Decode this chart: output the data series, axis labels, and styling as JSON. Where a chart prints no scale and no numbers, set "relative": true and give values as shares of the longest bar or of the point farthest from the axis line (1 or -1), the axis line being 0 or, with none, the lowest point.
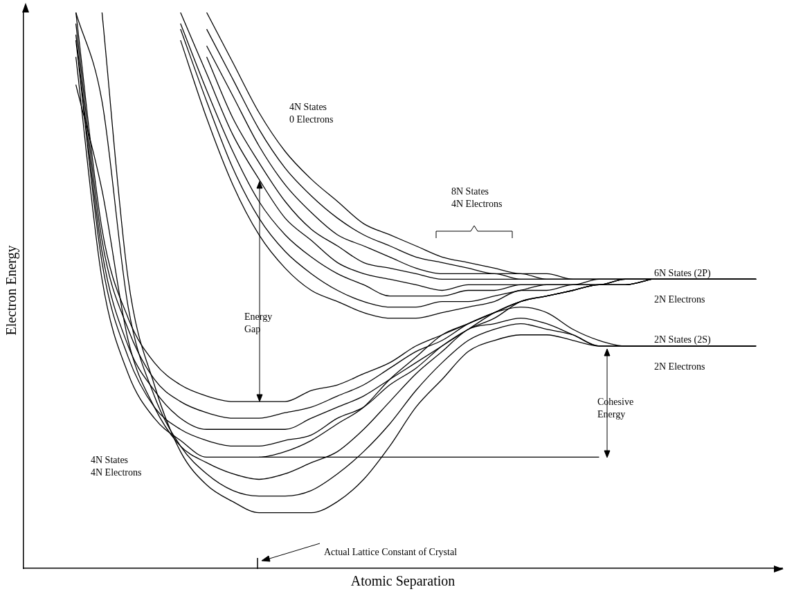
{
  "chart_data": {
    "type": "line",
    "relative": true,
    "marker": "none",
    "xlabel": "Atomic Separation",
    "ylabel": "Electron Energy",
    "categories": [
      null,
      null,
      null,
      null,
      null,
      null,
      null,
      null,
      null,
      null,
      null,
      null,
      null,
      null,
      null,
      null,
      null,
      null,
      null,
      null,
      null,
      null,
      null,
      null,
      null,
      null,
      null,
      null,
      null,
      null
    ],
    "annotations": [
      "4N States\n0 Electrons",
      "8N States\n4N Electrons",
      "6N States (2P)",
      "2N Electrons",
      "Energy\nGap",
      "2N States (2S)",
      "2N Electrons",
      "Cohesive\nEnergy",
      "4N States\n4N Electrons",
      "Actual Lattice Constant of Crystal"
    ],
    "series": [
      {
        "color": "#000000",
        "values": [
          null,
          null,
          null,
          null,
          null,
          null,
          null,
          1.0,
          0.91,
          0.82,
          0.75,
          0.7,
          0.66,
          0.62,
          0.6,
          0.58,
          0.56,
          0.55,
          0.54,
          0.53,
          0.53,
          0.52,
          0.52,
          0.52,
          0.52,
          0.52,
          0.52,
          0.52,
          0.52,
          null
        ]
      },
      {
        "color": "#000000",
        "values": [
          null,
          null,
          null,
          null,
          null,
          null,
          null,
          0.97,
          0.88,
          0.79,
          0.72,
          0.67,
          0.63,
          0.6,
          0.58,
          0.56,
          0.55,
          0.54,
          0.53,
          0.53,
          0.52,
          0.52,
          0.52,
          0.52,
          0.52,
          0.52,
          0.52,
          0.52,
          0.52,
          null
        ]
      },
      {
        "color": "#000000",
        "values": [
          null,
          null,
          null,
          null,
          null,
          null,
          null,
          0.94,
          0.85,
          0.76,
          0.69,
          0.64,
          0.6,
          0.58,
          0.56,
          0.54,
          0.53,
          0.53,
          0.53,
          0.52,
          0.52,
          0.52,
          0.52,
          0.52,
          0.52,
          0.52,
          0.52,
          0.52,
          0.52,
          null
        ]
      },
      {
        "color": "#000000",
        "values": [
          null,
          null,
          null,
          null,
          null,
          null,
          null,
          0.92,
          0.81,
          0.73,
          0.66,
          0.61,
          0.58,
          0.55,
          0.54,
          0.53,
          0.52,
          0.52,
          0.52,
          0.52,
          0.52,
          0.52,
          0.52,
          0.52,
          0.52,
          0.52,
          0.52,
          0.52,
          0.52,
          null
        ]
      },
      {
        "color": "#000000",
        "values": [
          null,
          null,
          null,
          null,
          null,
          null,
          1.0,
          0.89,
          0.78,
          0.7,
          0.63,
          0.59,
          0.55,
          0.53,
          0.52,
          0.51,
          0.5,
          0.51,
          0.51,
          0.51,
          0.51,
          0.51,
          0.52,
          0.52,
          0.52,
          0.52,
          0.52,
          0.52,
          0.52,
          null
        ]
      },
      {
        "color": "#000000",
        "values": [
          null,
          null,
          null,
          null,
          null,
          null,
          0.98,
          0.86,
          0.75,
          0.66,
          0.6,
          0.56,
          0.53,
          0.51,
          0.49,
          0.49,
          0.49,
          0.5,
          0.5,
          0.51,
          0.51,
          0.51,
          0.51,
          0.52,
          0.52,
          0.52,
          0.52,
          0.52,
          0.52,
          null
        ]
      },
      {
        "color": "#000000",
        "values": [
          null,
          null,
          null,
          null,
          null,
          null,
          0.97,
          0.84,
          0.72,
          0.63,
          0.57,
          0.53,
          0.5,
          0.48,
          0.47,
          0.47,
          0.48,
          0.48,
          0.49,
          0.5,
          0.51,
          0.51,
          0.51,
          0.52,
          0.52,
          0.52,
          0.52,
          0.52,
          0.52,
          null
        ]
      },
      {
        "color": "#000000",
        "values": [
          null,
          null,
          null,
          null,
          null,
          null,
          0.95,
          0.81,
          0.69,
          0.6,
          0.54,
          0.5,
          0.48,
          0.46,
          0.45,
          0.45,
          0.46,
          0.47,
          0.48,
          0.5,
          0.5,
          0.51,
          0.51,
          0.52,
          0.52,
          0.52,
          0.52,
          0.52,
          0.52,
          null
        ]
      },
      {
        "color": "#000000",
        "values": [
          null,
          null,
          1.0,
          0.61,
          0.45,
          0.37,
          0.33,
          0.31,
          0.3,
          0.3,
          0.3,
          0.32,
          0.33,
          0.35,
          0.37,
          0.4,
          0.42,
          0.44,
          0.46,
          0.48,
          0.49,
          0.5,
          0.51,
          0.51,
          0.52,
          null,
          null,
          null,
          null,
          null
        ]
      },
      {
        "color": "#000000",
        "values": [
          null,
          null,
          0.98,
          0.59,
          0.43,
          0.34,
          0.3,
          0.28,
          0.27,
          0.27,
          0.28,
          0.29,
          0.31,
          0.33,
          0.36,
          0.39,
          0.41,
          0.44,
          0.46,
          0.48,
          0.49,
          0.5,
          0.51,
          0.51,
          0.52,
          null,
          null,
          null,
          null,
          null
        ]
      },
      {
        "color": "#000000",
        "values": [
          null,
          null,
          0.96,
          0.57,
          0.4,
          0.32,
          0.27,
          0.25,
          0.25,
          0.25,
          0.25,
          0.27,
          0.29,
          0.31,
          0.34,
          0.37,
          0.4,
          0.43,
          0.46,
          0.48,
          0.49,
          0.5,
          0.51,
          0.51,
          0.52,
          null,
          null,
          null,
          null,
          null
        ]
      },
      {
        "color": "#000000",
        "values": [
          null,
          null,
          0.95,
          0.55,
          0.38,
          0.29,
          0.25,
          0.23,
          0.22,
          0.22,
          0.23,
          0.24,
          0.27,
          0.29,
          0.33,
          0.36,
          0.4,
          0.43,
          0.45,
          0.48,
          0.49,
          0.5,
          0.51,
          0.51,
          0.52,
          null,
          null,
          null,
          null,
          null
        ]
      },
      {
        "color": "#000000",
        "values": [
          null,
          null,
          0.92,
          0.52,
          0.35,
          0.27,
          0.23,
          0.2,
          0.2,
          0.2,
          0.21,
          0.23,
          0.26,
          0.29,
          0.34,
          0.38,
          0.42,
          0.44,
          0.46,
          0.47,
          0.46,
          0.43,
          0.41,
          0.4,
          0.4,
          0.4,
          0.4,
          0.4,
          0.4,
          null
        ]
      },
      {
        "color": "#000000",
        "values": [
          null,
          null,
          0.87,
          0.68,
          0.41,
          0.29,
          0.22,
          0.19,
          0.17,
          0.16,
          0.17,
          0.19,
          0.21,
          0.25,
          0.3,
          0.35,
          0.39,
          0.43,
          0.44,
          0.45,
          0.44,
          0.42,
          0.4,
          0.4,
          0.4,
          0.4,
          0.4,
          0.4,
          0.4,
          null
        ]
      },
      {
        "color": "#000000",
        "values": [
          null,
          null,
          1.0,
          0.84,
          0.47,
          0.31,
          0.22,
          0.17,
          0.14,
          0.13,
          0.13,
          0.14,
          0.17,
          0.21,
          0.26,
          0.32,
          0.37,
          0.41,
          0.43,
          0.44,
          0.43,
          0.42,
          0.4,
          0.4,
          0.4,
          0.4,
          0.4,
          0.4,
          0.4,
          null
        ]
      },
      {
        "color": "#000000",
        "values": [
          null,
          null,
          null,
          1.0,
          0.52,
          0.33,
          0.21,
          0.15,
          0.12,
          0.1,
          0.1,
          0.1,
          0.12,
          0.16,
          0.22,
          0.29,
          0.34,
          0.39,
          0.41,
          0.42,
          0.42,
          0.41,
          0.4,
          0.4,
          0.4,
          0.4,
          0.4,
          0.4,
          0.4,
          null
        ]
      },
      {
        "type": "line",
        "color": "#000000",
        "values": [
          null,
          null,
          null,
          null,
          null,
          null,
          null,
          null,
          null,
          0.2,
          0.2,
          0.2,
          0.2,
          0.2,
          0.2,
          0.2,
          0.2,
          0.2,
          0.2,
          0.2,
          0.2,
          0.2,
          0.2,
          null,
          null,
          null,
          null,
          null,
          null,
          null
        ]
      }
    ]
  }
}
